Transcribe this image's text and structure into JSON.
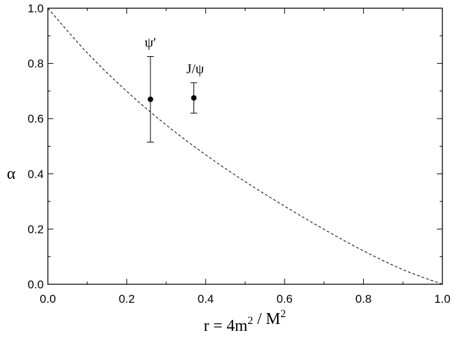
{
  "chart_data": {
    "type": "scatter",
    "title": "",
    "xlabel": "r = 4m² / M²",
    "ylabel": "α",
    "xlim": [
      0.0,
      1.0
    ],
    "ylim": [
      0.0,
      1.0
    ],
    "xticks": [
      "0.0",
      "0.2",
      "0.4",
      "0.6",
      "0.8",
      "1.0"
    ],
    "yticks": [
      "0.0",
      "0.2",
      "0.4",
      "0.6",
      "0.8",
      "1.0"
    ],
    "grid": false,
    "legend": "none",
    "curve": {
      "style": "dashed",
      "x": [
        0.0,
        0.1,
        0.2,
        0.3,
        0.4,
        0.5,
        0.6,
        0.7,
        0.8,
        0.9,
        1.0
      ],
      "y": [
        1.0,
        0.838,
        0.699,
        0.577,
        0.469,
        0.372,
        0.283,
        0.199,
        0.121,
        0.053,
        0.0
      ]
    },
    "points": [
      {
        "label": "ψ′",
        "x": 0.26,
        "y": 0.67,
        "err_low": 0.515,
        "err_high": 0.825
      },
      {
        "label": "J/ψ",
        "x": 0.37,
        "y": 0.675,
        "err_low": 0.62,
        "err_high": 0.73
      }
    ]
  }
}
